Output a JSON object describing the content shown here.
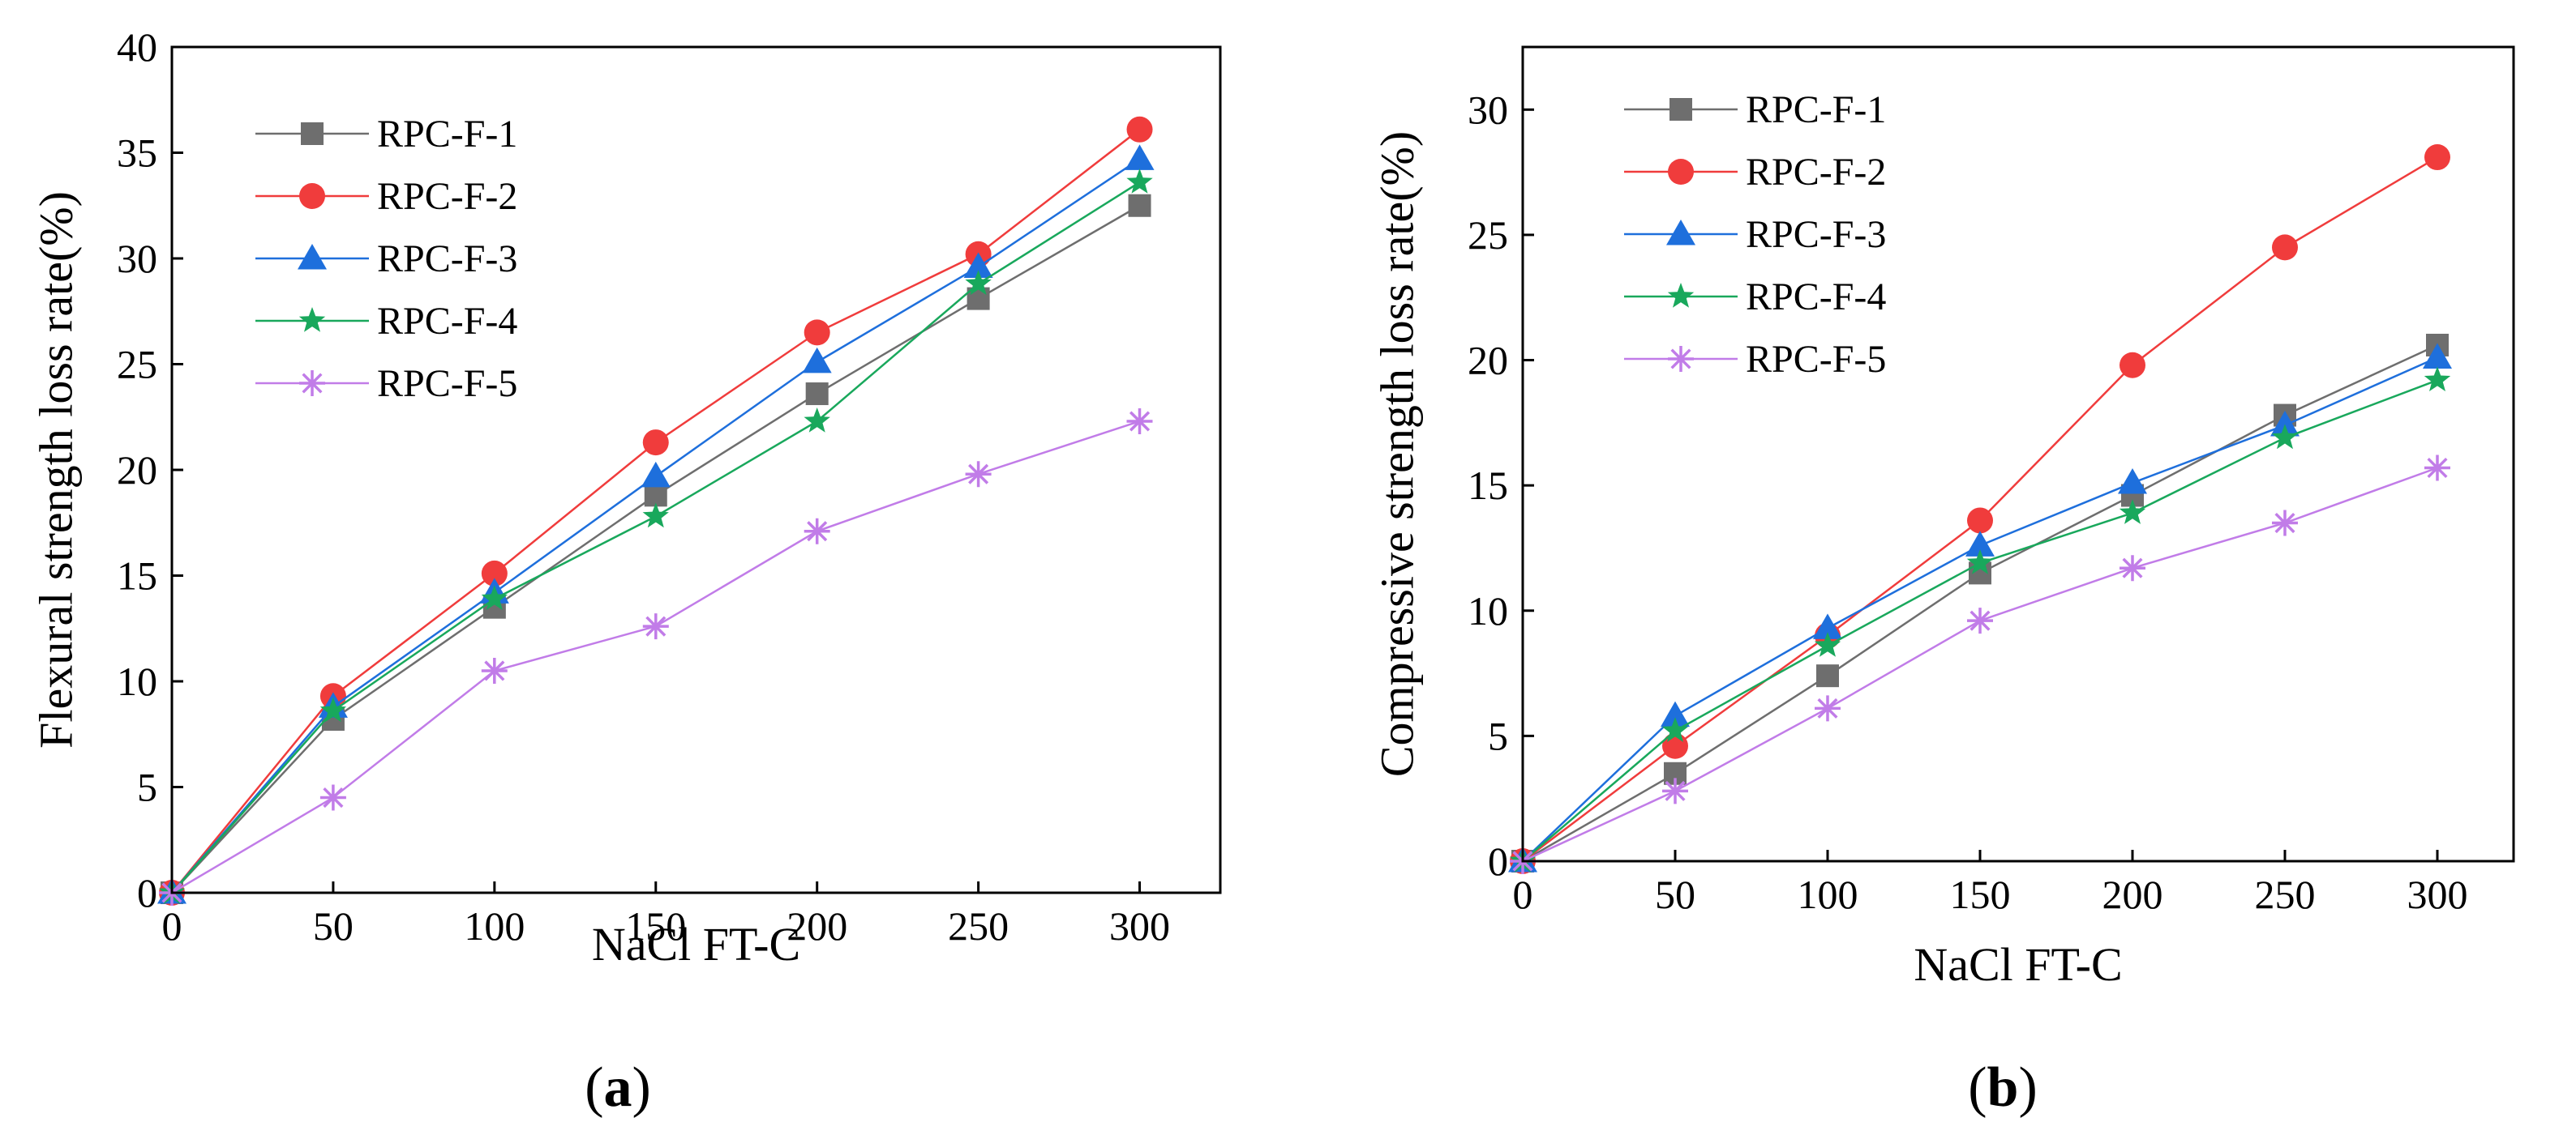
{
  "chart_data": [
    {
      "type": "line",
      "panel_label": {
        "open": "(",
        "letter": "a",
        "close": ")"
      },
      "xlabel": "NaCl FT-C",
      "ylabel": "Flexural strength loss rate(%)",
      "xlim": [
        0,
        325
      ],
      "ylim": [
        0,
        40
      ],
      "xticks": [
        0,
        50,
        100,
        150,
        200,
        250,
        300
      ],
      "yticks": [
        0,
        5,
        10,
        15,
        20,
        25,
        30,
        35,
        40
      ],
      "grid": false,
      "legend_position": "top-left",
      "x": [
        0,
        50,
        100,
        150,
        200,
        250,
        300
      ],
      "series": [
        {
          "name": "RPC-F-1",
          "color": "#6e6e6e",
          "marker": "square",
          "values": [
            0,
            8.2,
            13.5,
            18.8,
            23.6,
            28.1,
            32.5
          ]
        },
        {
          "name": "RPC-F-2",
          "color": "#f03c3c",
          "marker": "circle",
          "values": [
            0,
            9.3,
            15.1,
            21.3,
            26.5,
            30.2,
            36.1
          ]
        },
        {
          "name": "RPC-F-3",
          "color": "#1e6fdc",
          "marker": "triangle",
          "values": [
            0,
            8.8,
            14.2,
            19.7,
            25.1,
            29.6,
            34.7
          ]
        },
        {
          "name": "RPC-F-4",
          "color": "#19a85c",
          "marker": "star",
          "values": [
            0,
            8.6,
            13.9,
            17.8,
            22.3,
            28.8,
            33.6
          ]
        },
        {
          "name": "RPC-F-5",
          "color": "#c17ce8",
          "marker": "asterisk",
          "values": [
            0,
            4.5,
            10.5,
            12.6,
            17.1,
            19.8,
            22.3
          ]
        }
      ]
    },
    {
      "type": "line",
      "panel_label": {
        "open": "(",
        "letter": "b",
        "close": ")"
      },
      "xlabel": "NaCl FT-C",
      "ylabel": "Compressive strength loss rate(%)",
      "xlim": [
        0,
        325
      ],
      "ylim": [
        0,
        32.5
      ],
      "xticks": [
        0,
        50,
        100,
        150,
        200,
        250,
        300
      ],
      "yticks": [
        0,
        5,
        10,
        15,
        20,
        25,
        30
      ],
      "grid": false,
      "legend_position": "top-left",
      "x": [
        0,
        50,
        100,
        150,
        200,
        250,
        300
      ],
      "series": [
        {
          "name": "RPC-F-1",
          "color": "#6e6e6e",
          "marker": "square",
          "values": [
            0,
            3.5,
            7.4,
            11.5,
            14.6,
            17.8,
            20.6
          ]
        },
        {
          "name": "RPC-F-2",
          "color": "#f03c3c",
          "marker": "circle",
          "values": [
            0,
            4.6,
            9.0,
            13.6,
            19.8,
            24.5,
            28.1
          ]
        },
        {
          "name": "RPC-F-3",
          "color": "#1e6fdc",
          "marker": "triangle",
          "values": [
            0,
            5.8,
            9.3,
            12.6,
            15.1,
            17.4,
            20.1
          ]
        },
        {
          "name": "RPC-F-4",
          "color": "#19a85c",
          "marker": "star",
          "values": [
            0,
            5.2,
            8.6,
            11.9,
            13.9,
            16.9,
            19.2
          ]
        },
        {
          "name": "RPC-F-5",
          "color": "#c17ce8",
          "marker": "asterisk",
          "values": [
            0,
            2.8,
            6.1,
            9.6,
            11.7,
            13.5,
            15.7
          ]
        }
      ]
    }
  ]
}
